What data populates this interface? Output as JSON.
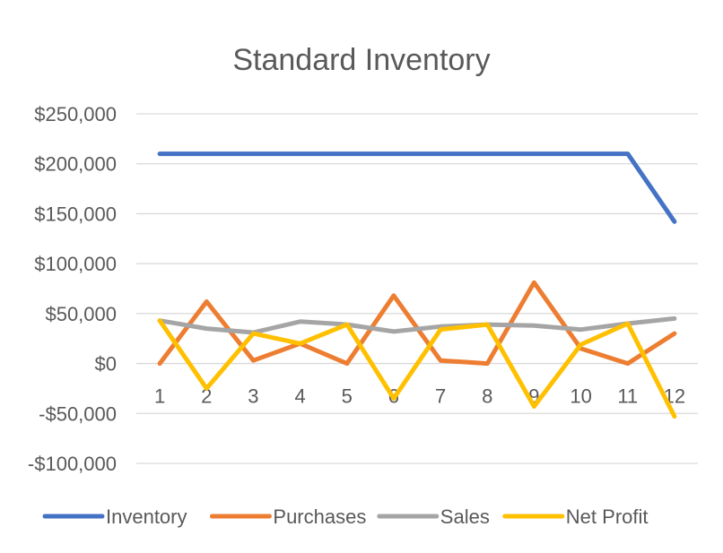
{
  "chart_data": {
    "type": "line",
    "title": "Standard Inventory",
    "xlabel": "",
    "ylabel": "",
    "categories": [
      "1",
      "2",
      "3",
      "4",
      "5",
      "6",
      "7",
      "8",
      "9",
      "10",
      "11",
      "12"
    ],
    "ylim": [
      -100000,
      250000
    ],
    "yticks": [
      {
        "value": 250000,
        "label": "$250,000"
      },
      {
        "value": 200000,
        "label": "$200,000"
      },
      {
        "value": 150000,
        "label": "$150,000"
      },
      {
        "value": 100000,
        "label": "$100,000"
      },
      {
        "value": 50000,
        "label": "$50,000"
      },
      {
        "value": 0,
        "label": "$0"
      },
      {
        "value": -50000,
        "label": "-$50,000"
      },
      {
        "value": -100000,
        "label": "-$100,000"
      }
    ],
    "grid": true,
    "legend_position": "bottom",
    "series": [
      {
        "name": "Inventory",
        "color": "#4472C4",
        "values": [
          210000,
          210000,
          210000,
          210000,
          210000,
          210000,
          210000,
          210000,
          210000,
          210000,
          210000,
          142000
        ]
      },
      {
        "name": "Purchases",
        "color": "#ED7D31",
        "values": [
          0,
          62000,
          3000,
          20000,
          0,
          68000,
          3000,
          0,
          81000,
          15000,
          0,
          30000
        ]
      },
      {
        "name": "Sales",
        "color": "#A5A5A5",
        "values": [
          43000,
          35000,
          31000,
          42000,
          39000,
          32000,
          37000,
          39000,
          38000,
          34000,
          40000,
          45000
        ]
      },
      {
        "name": "Net Profit",
        "color": "#FFC000",
        "values": [
          43000,
          -25000,
          30000,
          20000,
          39000,
          -35000,
          34000,
          39000,
          -43000,
          19000,
          40000,
          -53000
        ]
      }
    ]
  }
}
